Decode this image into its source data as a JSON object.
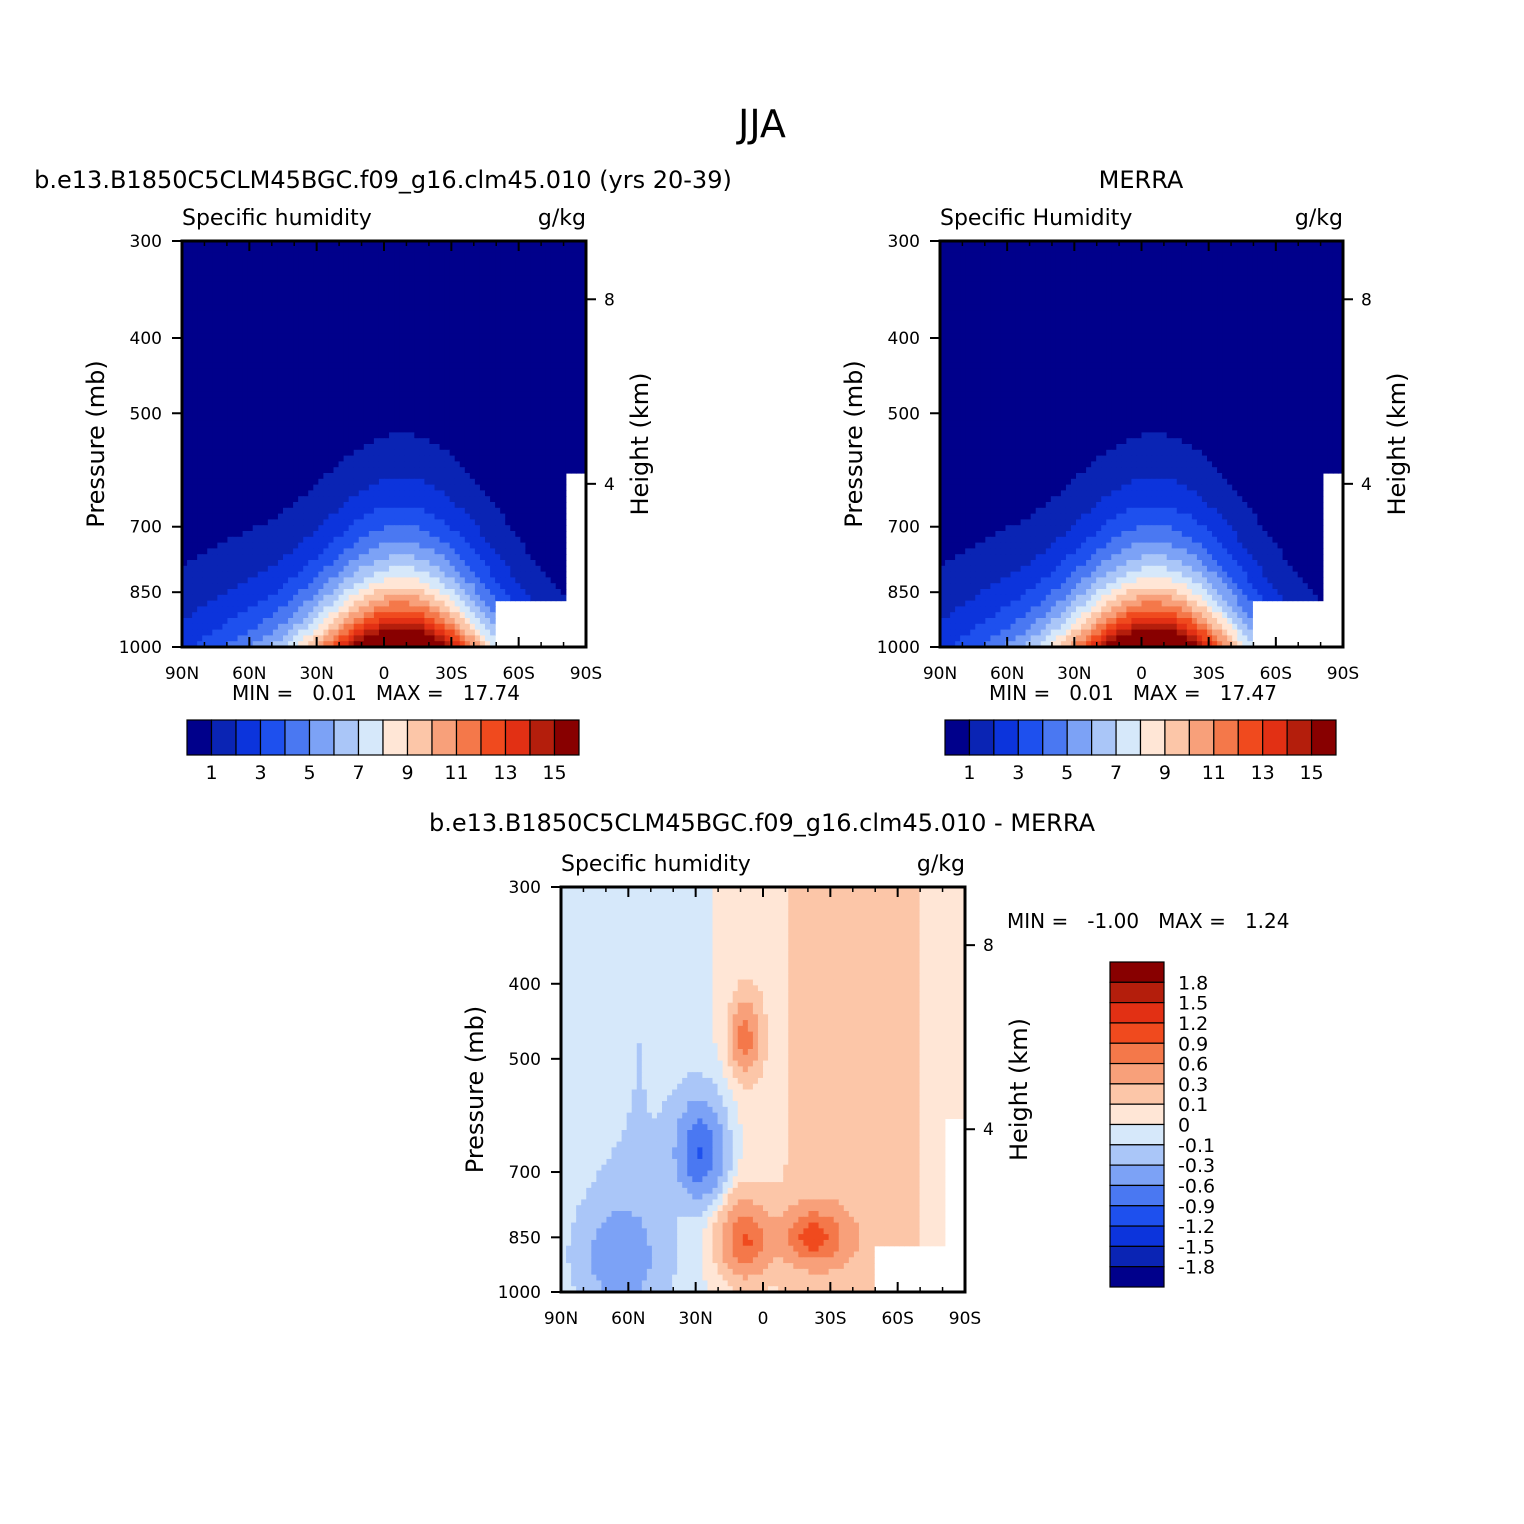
{
  "page_title": "JJA",
  "chart_data": [
    {
      "type": "heatmap",
      "panel_title": "b.e13.B1850C5CLM45BGC.f09_g16.clm45.010 (yrs 20-39)",
      "left_string": "Specific humidity",
      "right_string": "g/kg",
      "xlabel": "",
      "ylabel": "Pressure (mb)",
      "y2label": "Height (km)",
      "x_ticks": [
        "90N",
        "60N",
        "30N",
        "0",
        "30S",
        "60S",
        "90S"
      ],
      "y_ticks": [
        "300",
        "400",
        "500",
        "700",
        "850",
        "1000"
      ],
      "y2_ticks": [
        "8",
        "4"
      ],
      "min_label": "MIN =",
      "min_value": "0.01",
      "max_label": "MAX =",
      "max_value": "17.74",
      "colorbar_labels": [
        "1",
        "3",
        "5",
        "7",
        "9",
        "11",
        "13",
        "15"
      ],
      "colorbar_colors": [
        "#00008b",
        "#0a24b4",
        "#0c34dc",
        "#1e50ee",
        "#4a78f2",
        "#7ca2f6",
        "#aac6f8",
        "#d6e8fa",
        "#ffe6d6",
        "#fcc6a8",
        "#f8a07a",
        "#f4784a",
        "#f04a1e",
        "#e23014",
        "#b41e0c",
        "#880000"
      ],
      "values": {
        "profile": "specific humidity, max near equator at surface (~17), decreasing poleward and upward",
        "min": 0.01,
        "max": 17.74
      }
    },
    {
      "type": "heatmap",
      "panel_title": "MERRA",
      "left_string": "Specific Humidity",
      "right_string": "g/kg",
      "xlabel": "",
      "ylabel": "Pressure (mb)",
      "y2label": "Height (km)",
      "x_ticks": [
        "90N",
        "60N",
        "30N",
        "0",
        "30S",
        "60S",
        "90S"
      ],
      "y_ticks": [
        "300",
        "400",
        "500",
        "700",
        "850",
        "1000"
      ],
      "y2_ticks": [
        "8",
        "4"
      ],
      "min_label": "MIN =",
      "min_value": "0.01",
      "max_label": "MAX =",
      "max_value": "17.47",
      "colorbar_labels": [
        "1",
        "3",
        "5",
        "7",
        "9",
        "11",
        "13",
        "15"
      ],
      "colorbar_colors": [
        "#00008b",
        "#0a24b4",
        "#0c34dc",
        "#1e50ee",
        "#4a78f2",
        "#7ca2f6",
        "#aac6f8",
        "#d6e8fa",
        "#ffe6d6",
        "#fcc6a8",
        "#f8a07a",
        "#f4784a",
        "#f04a1e",
        "#e23014",
        "#b41e0c",
        "#880000"
      ],
      "values": {
        "min": 0.01,
        "max": 17.47
      }
    },
    {
      "type": "heatmap",
      "panel_title": "b.e13.B1850C5CLM45BGC.f09_g16.clm45.010 - MERRA",
      "left_string": "Specific humidity",
      "right_string": "g/kg",
      "xlabel": "",
      "ylabel": "Pressure (mb)",
      "y2label": "Height (km)",
      "x_ticks": [
        "90N",
        "60N",
        "30N",
        "0",
        "30S",
        "60S",
        "90S"
      ],
      "y_ticks": [
        "300",
        "400",
        "500",
        "700",
        "850",
        "1000"
      ],
      "y2_ticks": [
        "8",
        "4"
      ],
      "min_label": "MIN =",
      "min_value": "-1.00",
      "max_label": "MAX =",
      "max_value": "1.24",
      "colorbar_labels": [
        "1.8",
        "1.5",
        "1.2",
        "0.9",
        "0.6",
        "0.3",
        "0.1",
        "0",
        "-0.1",
        "-0.3",
        "-0.6",
        "-0.9",
        "-1.2",
        "-1.5",
        "-1.8"
      ],
      "colorbar_colors": [
        "#880000",
        "#b41e0c",
        "#e23014",
        "#f04a1e",
        "#f4784a",
        "#f8a07a",
        "#fcc6a8",
        "#ffe6d6",
        "#d6e8fa",
        "#aac6f8",
        "#7ca2f6",
        "#4a78f2",
        "#1e50ee",
        "#0c34dc",
        "#0a24b4",
        "#00008b"
      ],
      "values": {
        "min": -1.0,
        "max": 1.24
      }
    }
  ]
}
